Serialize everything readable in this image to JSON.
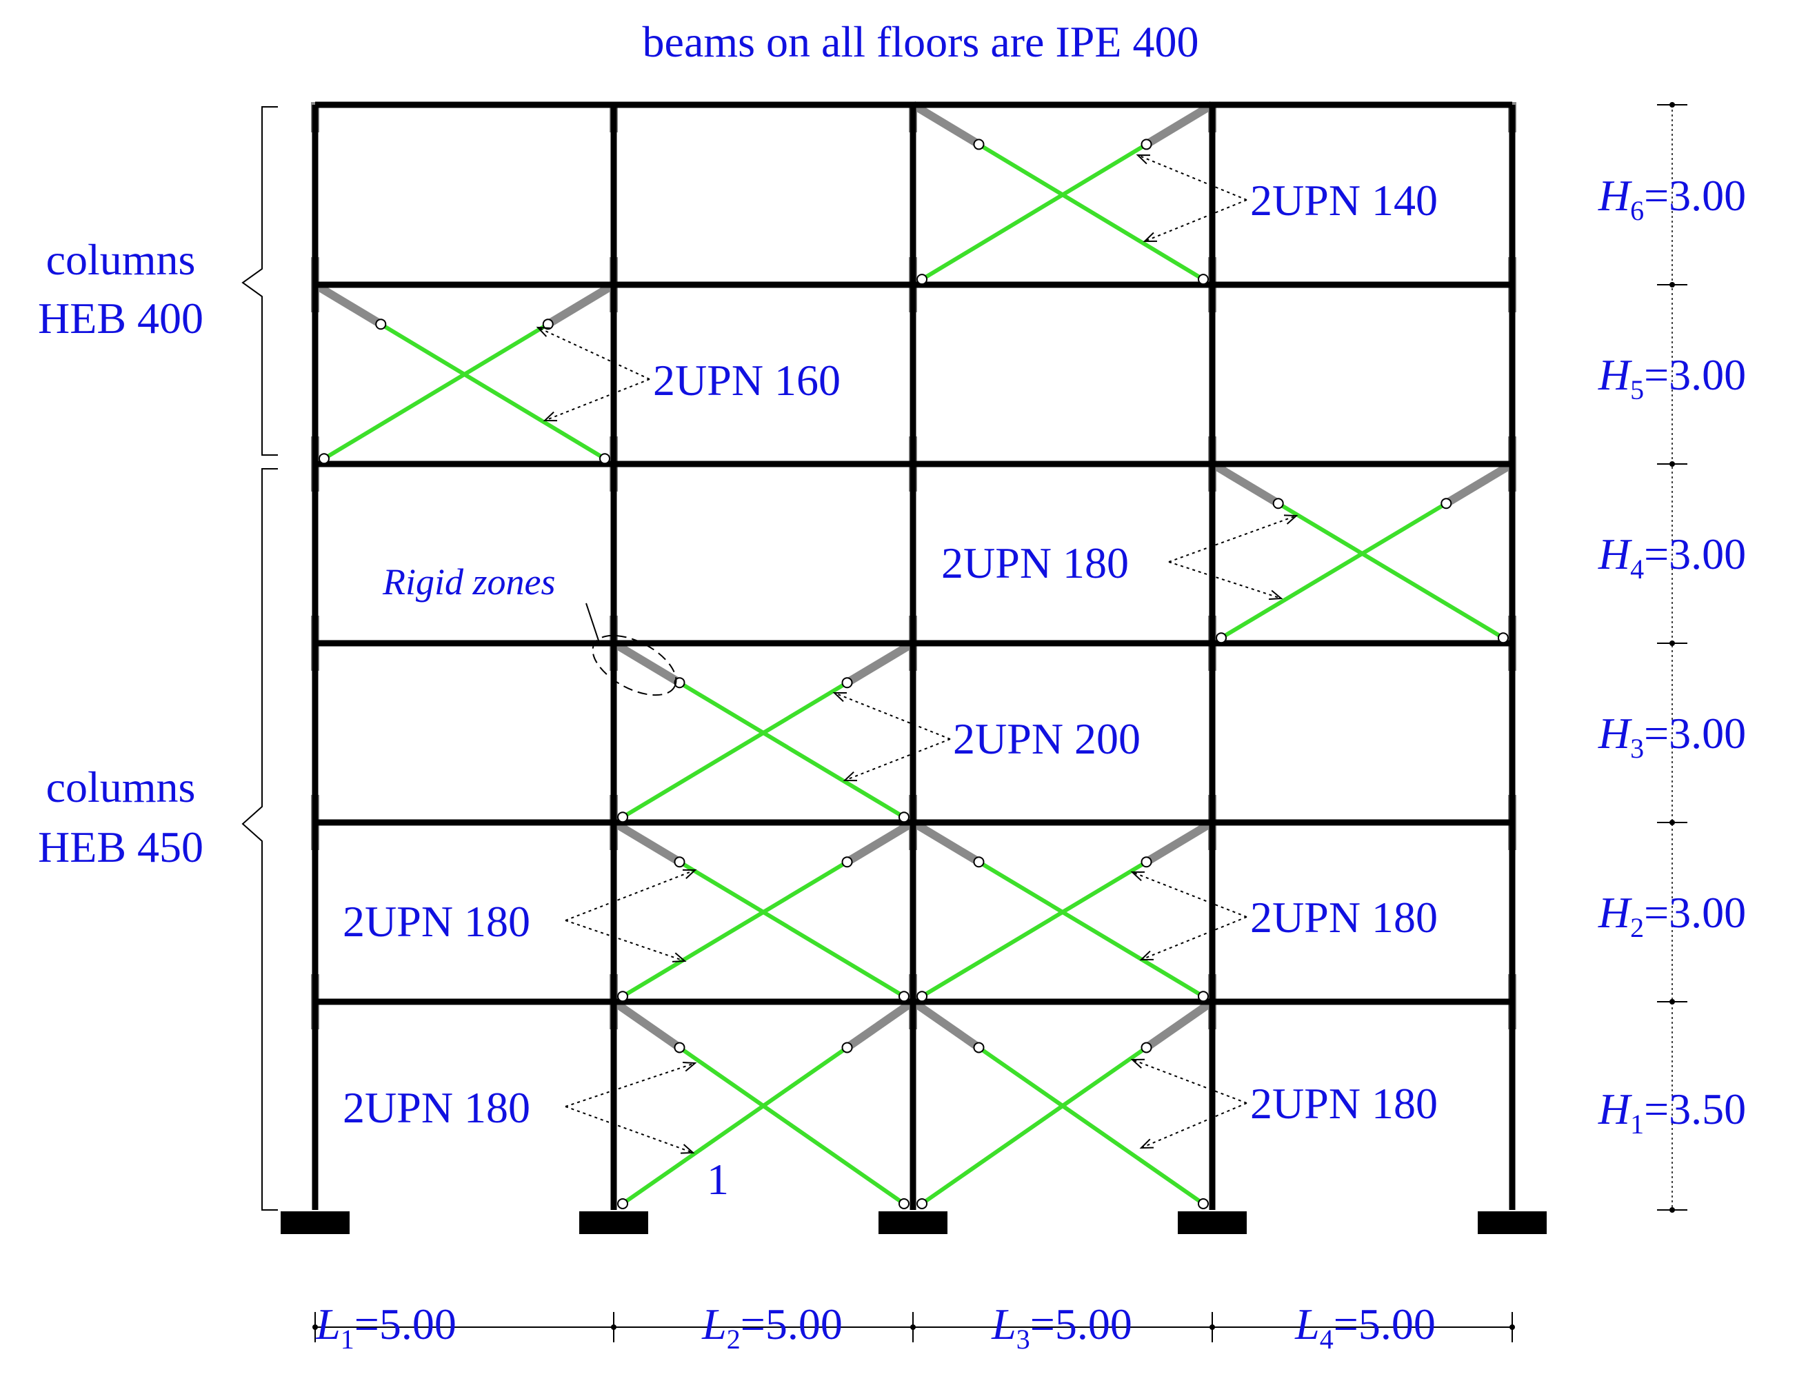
{
  "title": "beams on all floors are IPE 400",
  "columns_upper": {
    "line1": "columns",
    "line2": "HEB 400"
  },
  "columns_lower": {
    "line1": "columns",
    "line2": "HEB 450"
  },
  "rigid_zones_label": "Rigid zones",
  "bay_count": 4,
  "story_count": 6,
  "spans": [
    {
      "symbol": "L",
      "sub": "1",
      "value": "=5.00"
    },
    {
      "symbol": "L",
      "sub": "2",
      "value": "=5.00"
    },
    {
      "symbol": "L",
      "sub": "3",
      "value": "=5.00"
    },
    {
      "symbol": "L",
      "sub": "4",
      "value": "=5.00"
    }
  ],
  "heights": [
    {
      "symbol": "H",
      "sub": "6",
      "value": "=3.00"
    },
    {
      "symbol": "H",
      "sub": "5",
      "value": "=3.00"
    },
    {
      "symbol": "H",
      "sub": "4",
      "value": "=3.00"
    },
    {
      "symbol": "H",
      "sub": "3",
      "value": "=3.00"
    },
    {
      "symbol": "H",
      "sub": "2",
      "value": "=3.00"
    },
    {
      "symbol": "H",
      "sub": "1",
      "value": "=3.50"
    }
  ],
  "brace_labels": [
    {
      "text": "2UPN 140"
    },
    {
      "text": "2UPN 160"
    },
    {
      "text": "2UPN 180"
    },
    {
      "text": "2UPN 200"
    },
    {
      "text": "2UPN 180"
    },
    {
      "text": "2UPN 180"
    },
    {
      "text": "2UPN 180"
    },
    {
      "text": "2UPN 180"
    }
  ],
  "braced_panels": [
    {
      "bay": 3,
      "story": 6
    },
    {
      "bay": 1,
      "story": 5
    },
    {
      "bay": 4,
      "story": 4
    },
    {
      "bay": 2,
      "story": 3
    },
    {
      "bay": 2,
      "story": 2
    },
    {
      "bay": 3,
      "story": 2
    },
    {
      "bay": 2,
      "story": 1
    },
    {
      "bay": 3,
      "story": 1
    }
  ],
  "element_label": "1",
  "colors": {
    "frame": "#000000",
    "brace": "#3ddf2a",
    "rigid": "#8a8a8a",
    "text": "#1010e0"
  }
}
